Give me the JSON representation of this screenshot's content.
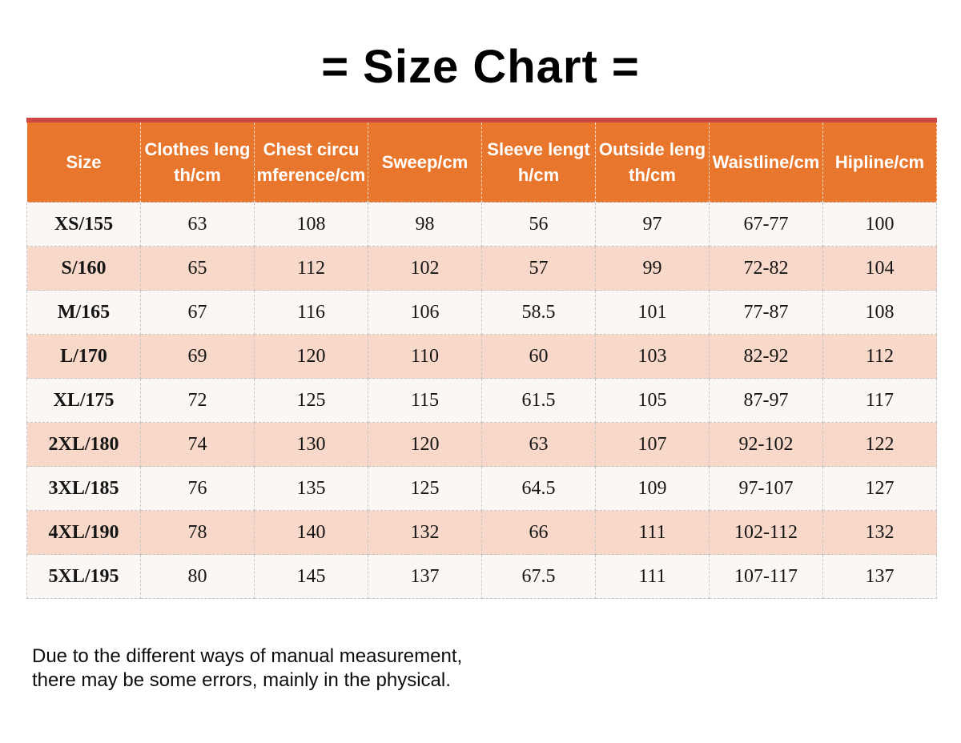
{
  "chart_data": {
    "type": "table",
    "title": "= Size Chart =",
    "columns": [
      "Size",
      "Clothes length/cm",
      "Chest circumference/cm",
      "Sweep/cm",
      "Sleeve length/cm",
      "Outside length/cm",
      "Waistline/cm",
      "Hipline/cm"
    ],
    "rows": [
      [
        "XS/155",
        "63",
        "108",
        "98",
        "56",
        "97",
        "67-77",
        "100"
      ],
      [
        "S/160",
        "65",
        "112",
        "102",
        "57",
        "99",
        "72-82",
        "104"
      ],
      [
        "M/165",
        "67",
        "116",
        "106",
        "58.5",
        "101",
        "77-87",
        "108"
      ],
      [
        "L/170",
        "69",
        "120",
        "110",
        "60",
        "103",
        "82-92",
        "112"
      ],
      [
        "XL/175",
        "72",
        "125",
        "115",
        "61.5",
        "105",
        "87-97",
        "117"
      ],
      [
        "2XL/180",
        "74",
        "130",
        "120",
        "63",
        "107",
        "92-102",
        "122"
      ],
      [
        "3XL/185",
        "76",
        "135",
        "125",
        "64.5",
        "109",
        "97-107",
        "127"
      ],
      [
        "4XL/190",
        "78",
        "140",
        "132",
        "66",
        "111",
        "102-112",
        "132"
      ],
      [
        "5XL/195",
        "80",
        "145",
        "137",
        "67.5",
        "111",
        "107-117",
        "137"
      ]
    ],
    "note": [
      "Due to the different ways of manual measurement,",
      "there may be some errors, mainly in the physical."
    ]
  },
  "colors": {
    "header_orange": "#E8772D",
    "top_border_red": "#CF4642",
    "row_pink": "#F8D8C8",
    "row_cream": "#FBF7F4"
  }
}
